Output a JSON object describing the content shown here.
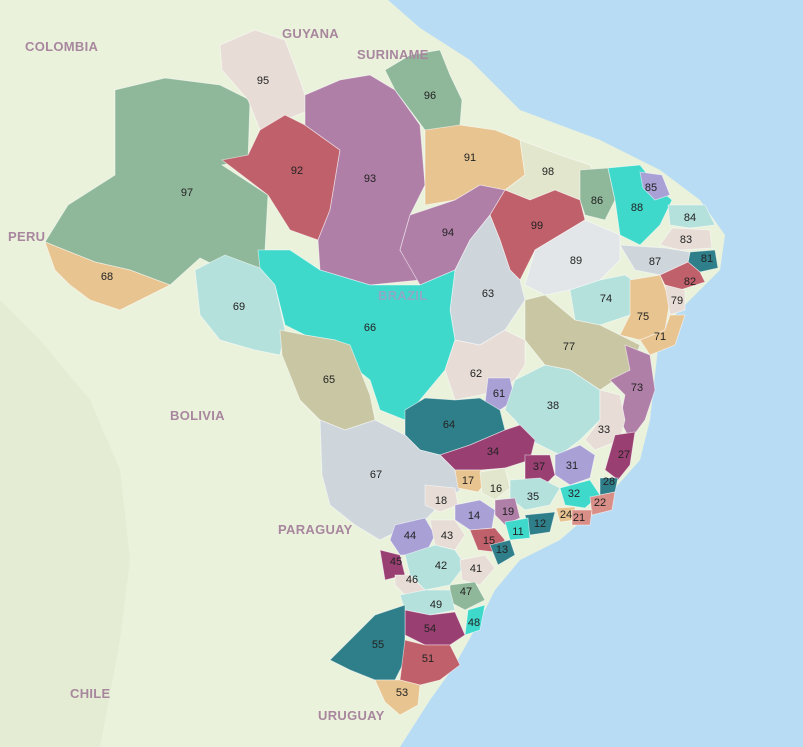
{
  "country_labels": {
    "colombia": "COLOMBIA",
    "guyana": "GUYANA",
    "suriname": "SURINAME",
    "peru": "PERU",
    "brazil": "BRAZIL",
    "bolivia": "BOLIVIA",
    "paraguay": "PARAGUAY",
    "chile": "CHILE",
    "uruguay": "URUGUAY"
  },
  "colors": {
    "ocean": "#b9dcf5",
    "land": "#eaf2dc",
    "green": "#8fb89a",
    "mauve": "#b07fa8",
    "red": "#c0606a",
    "tan": "#e8c490",
    "teal": "#3fd9cc",
    "lightteal": "#b5e1dc",
    "olive": "#c9c7a3",
    "grey": "#ced6dc",
    "plum": "#9a3f72",
    "lavender": "#a9a0d6",
    "darkteal": "#2f7f8a",
    "salmon": "#d98f87",
    "beige": "#e7ddd6",
    "sage": "#aecdaf"
  },
  "area_codes": [
    "11",
    "12",
    "13",
    "14",
    "15",
    "16",
    "17",
    "18",
    "19",
    "21",
    "22",
    "24",
    "27",
    "28",
    "31",
    "32",
    "33",
    "34",
    "35",
    "37",
    "38",
    "41",
    "42",
    "43",
    "44",
    "45",
    "46",
    "47",
    "48",
    "49",
    "51",
    "53",
    "54",
    "55",
    "61",
    "62",
    "63",
    "64",
    "65",
    "66",
    "67",
    "68",
    "69",
    "71",
    "73",
    "74",
    "75",
    "77",
    "79",
    "81",
    "82",
    "83",
    "84",
    "85",
    "86",
    "87",
    "88",
    "89",
    "91",
    "92",
    "93",
    "94",
    "95",
    "96",
    "97",
    "98",
    "99"
  ]
}
